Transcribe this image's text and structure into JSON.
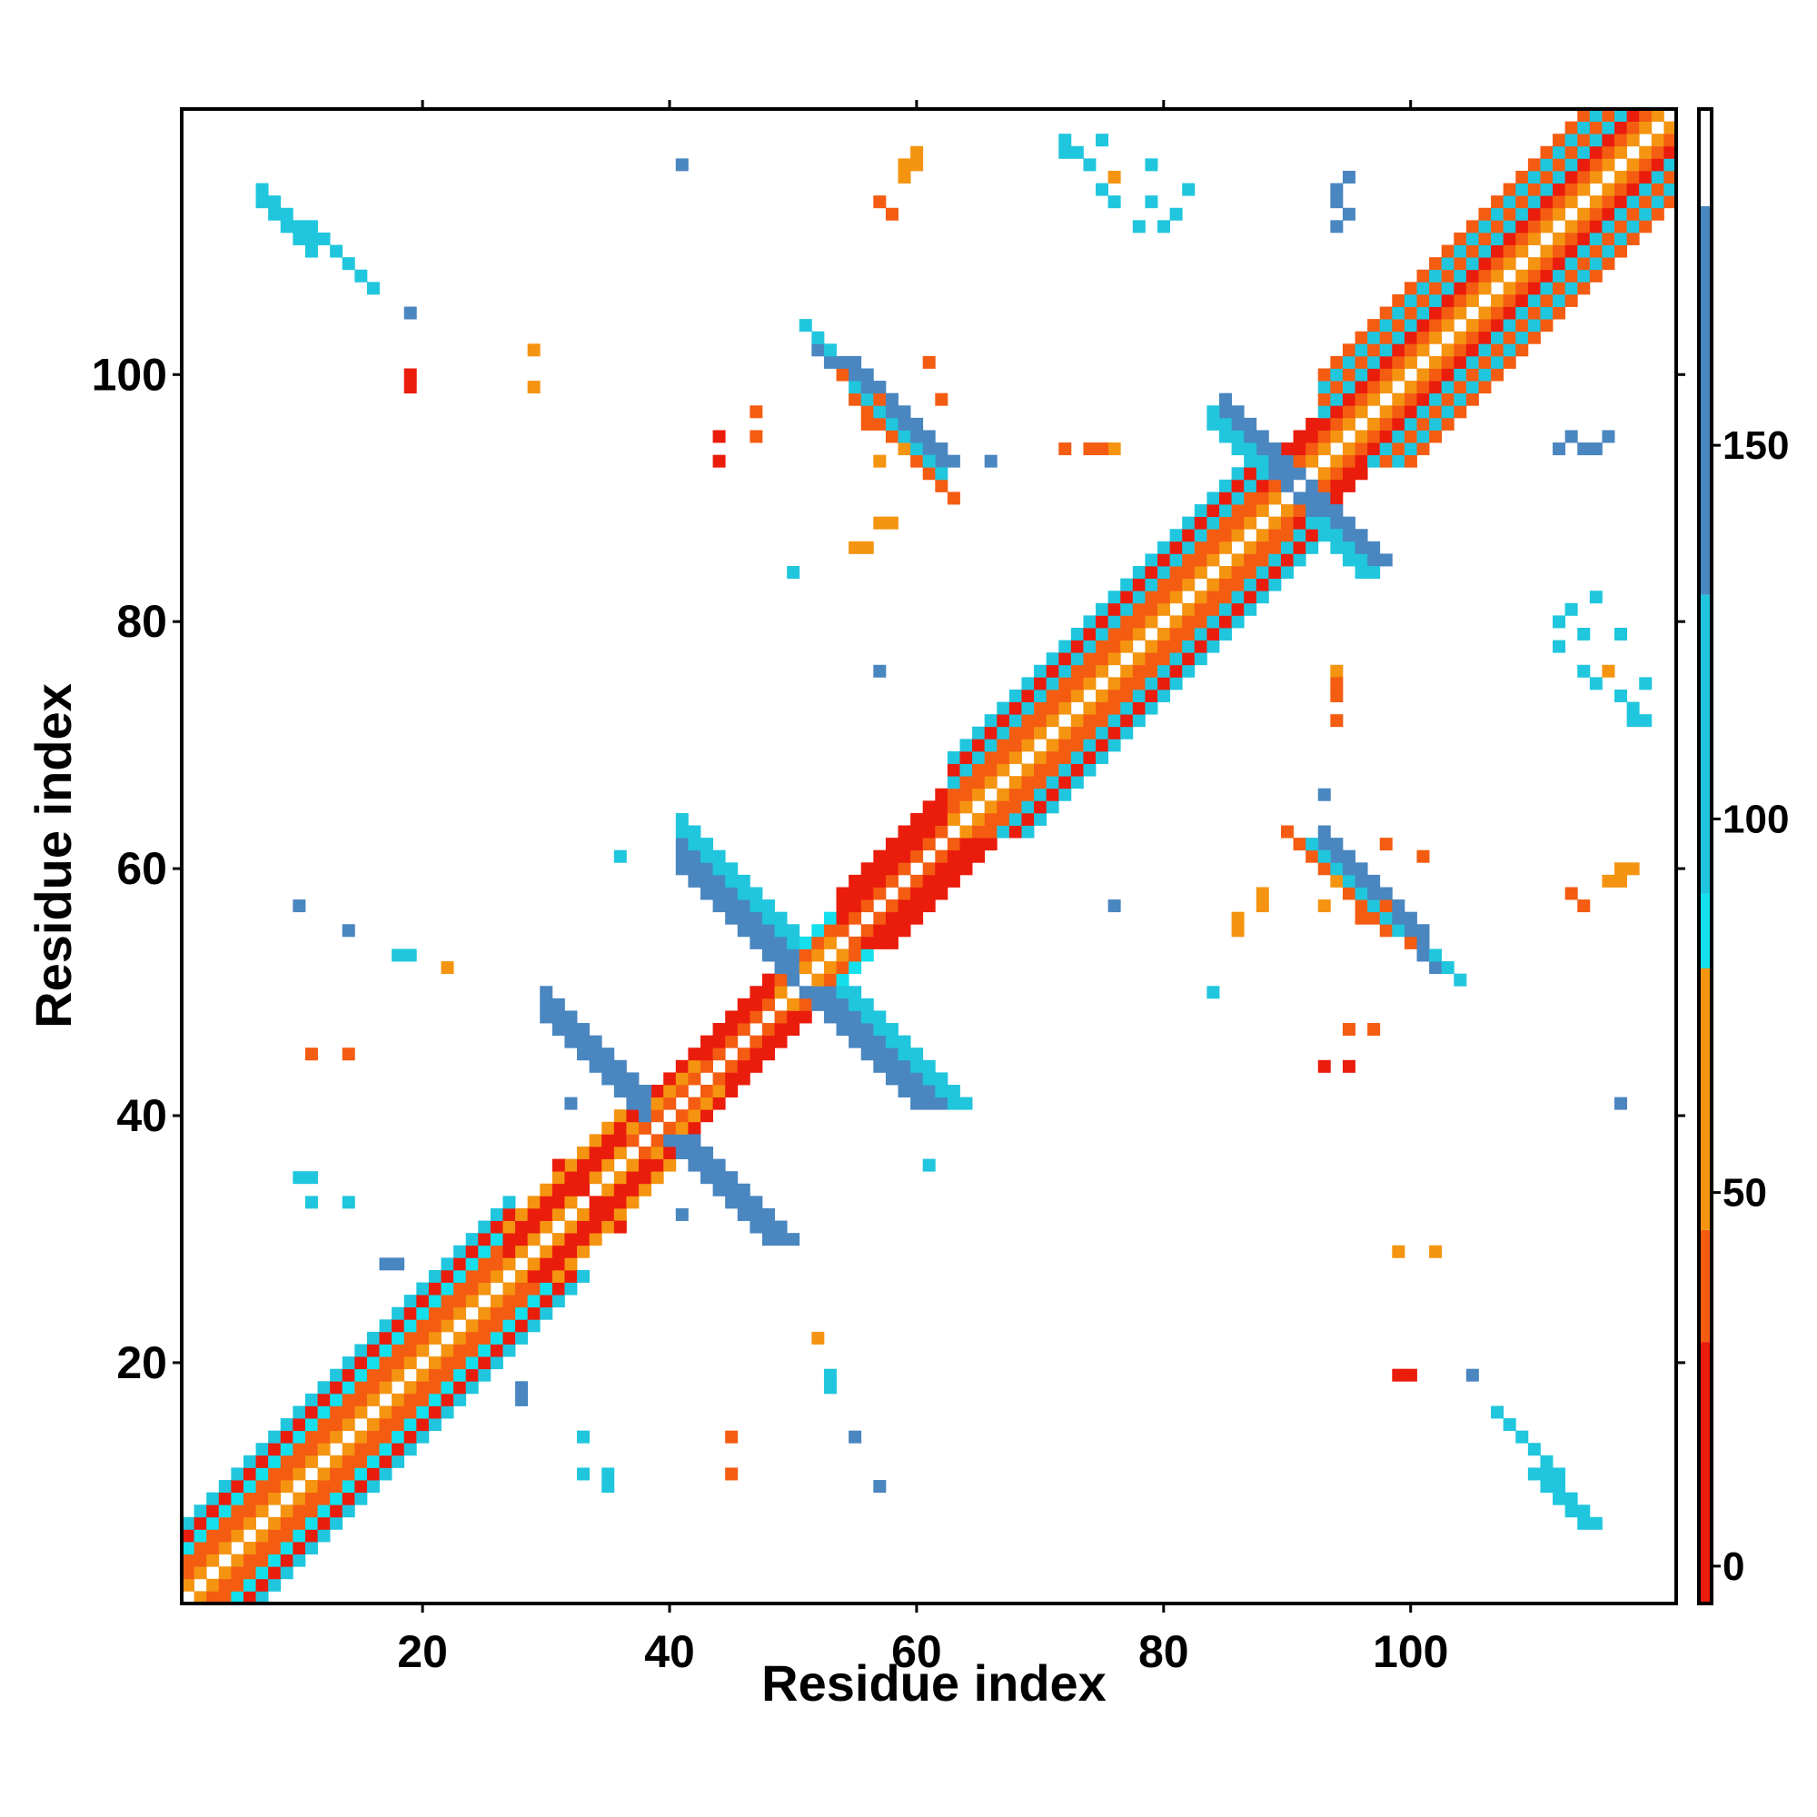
{
  "chart_data": {
    "type": "heatmap",
    "title": "",
    "xlabel": "Residue index",
    "ylabel": "Residue index",
    "xlim": [
      0.5,
      121.5
    ],
    "ylim": [
      0.5,
      121.5
    ],
    "x_ticks": [
      20,
      40,
      60,
      80,
      100
    ],
    "y_ticks": [
      20,
      40,
      60,
      80,
      100
    ],
    "grid": false,
    "legend": "none",
    "colorbar": {
      "placement": "right",
      "range": [
        -5,
        195
      ],
      "ticks": [
        0,
        50,
        100,
        150
      ],
      "segments": [
        {
          "from": -5,
          "to": 30,
          "color": "#ea1c0c"
        },
        {
          "from": 30,
          "to": 45,
          "color": "#f45c12"
        },
        {
          "from": 45,
          "to": 80,
          "color": "#f59410"
        },
        {
          "from": 80,
          "to": 90,
          "color": "#13e0ec"
        },
        {
          "from": 90,
          "to": 130,
          "color": "#20c6dd"
        },
        {
          "from": 130,
          "to": 182,
          "color": "#4a86c0"
        },
        {
          "from": 182,
          "to": 195,
          "color": "#ffffff"
        }
      ]
    },
    "diagonal_bands": [
      {
        "i_from": 1,
        "i_to": 27,
        "offsets": [
          [
            1,
            1,
            45
          ],
          [
            2,
            2,
            40
          ],
          [
            3,
            3,
            30
          ],
          [
            4,
            4,
            85
          ],
          [
            5,
            5,
            20
          ],
          [
            6,
            6,
            100
          ]
        ]
      },
      {
        "i_from": 27,
        "i_to": 37,
        "offsets": [
          [
            1,
            1,
            45
          ],
          [
            2,
            2,
            25
          ],
          [
            3,
            3,
            10
          ],
          [
            4,
            4,
            60
          ]
        ]
      },
      {
        "i_from": 37,
        "i_to": 43,
        "offsets": [
          [
            1,
            1,
            40
          ],
          [
            2,
            2,
            55
          ],
          [
            3,
            3,
            25
          ]
        ]
      },
      {
        "i_from": 43,
        "i_to": 49,
        "offsets": [
          [
            1,
            1,
            40
          ],
          [
            2,
            2,
            25
          ],
          [
            3,
            3,
            10
          ]
        ]
      },
      {
        "i_from": 49,
        "i_to": 54,
        "offsets": [
          [
            1,
            1,
            70
          ],
          [
            2,
            2,
            40
          ],
          [
            3,
            3,
            85
          ]
        ]
      },
      {
        "i_from": 54,
        "i_to": 63,
        "offsets": [
          [
            1,
            1,
            40
          ],
          [
            2,
            2,
            25
          ],
          [
            3,
            3,
            10
          ],
          [
            4,
            4,
            25
          ]
        ]
      },
      {
        "i_from": 63,
        "i_to": 88,
        "offsets": [
          [
            1,
            1,
            45
          ],
          [
            2,
            2,
            40
          ],
          [
            3,
            3,
            30
          ],
          [
            4,
            4,
            90
          ],
          [
            5,
            5,
            20
          ],
          [
            6,
            6,
            100
          ]
        ]
      },
      {
        "i_from": 88,
        "i_to": 93,
        "offsets": [
          [
            1,
            1,
            60
          ],
          [
            2,
            2,
            40
          ],
          [
            3,
            3,
            15
          ],
          [
            4,
            4,
            25
          ]
        ]
      },
      {
        "i_from": 93,
        "i_to": 121,
        "offsets": [
          [
            1,
            1,
            45
          ],
          [
            2,
            2,
            40
          ],
          [
            3,
            3,
            25
          ],
          [
            4,
            4,
            90
          ],
          [
            5,
            5,
            30
          ],
          [
            6,
            6,
            100
          ],
          [
            7,
            7,
            40
          ]
        ]
      }
    ],
    "cross_bands": [
      {
        "i_from": 30,
        "i_to": 38,
        "pair_sum": 78,
        "width": 3,
        "value": 150
      },
      {
        "i_from": 41,
        "i_to": 50,
        "pair_sum": 101,
        "width": 3,
        "value": 150
      },
      {
        "i_from": 41,
        "i_to": 50,
        "pair_sum": 104,
        "width": 2,
        "value": 95
      },
      {
        "i_from": 85,
        "i_to": 91,
        "pair_sum": 181,
        "width": 3,
        "value": 150
      },
      {
        "i_from": 84,
        "i_to": 88,
        "pair_sum": 180,
        "width": 2,
        "value": 95
      },
      {
        "i_from": 55,
        "i_to": 63,
        "pair_sum": 153,
        "width": 1,
        "value": 40
      },
      {
        "i_from": 31,
        "i_to": 36,
        "pair_sum": 67,
        "width": 1,
        "value": 25
      },
      {
        "i_from": 52,
        "i_to": 60,
        "pair_sum": 154,
        "width": 2,
        "value": 150
      },
      {
        "i_from": 51,
        "i_to": 59,
        "pair_sum": 155,
        "width": 1,
        "value": 95
      },
      {
        "i_from": 93,
        "i_to": 101,
        "pair_sum": 155,
        "width": 2,
        "value": 150
      },
      {
        "i_from": 92,
        "i_to": 100,
        "pair_sum": 154,
        "width": 1,
        "value": 95
      },
      {
        "i_from": 7,
        "i_to": 11,
        "pair_sum": 121,
        "width": 2,
        "value": 95
      },
      {
        "i_from": 11,
        "i_to": 16,
        "pair_sum": 123,
        "width": 1,
        "value": 95
      }
    ],
    "spots": [
      [
        61,
        101,
        40
      ],
      [
        62,
        98,
        40
      ],
      [
        57,
        93,
        45
      ],
      [
        59,
        94,
        45
      ],
      [
        44,
        95,
        25
      ],
      [
        47,
        97,
        40
      ],
      [
        57,
        88,
        60
      ],
      [
        56,
        86,
        60
      ],
      [
        96,
        56,
        40
      ],
      [
        98,
        57,
        40
      ],
      [
        93,
        44,
        25
      ],
      [
        95,
        47,
        40
      ],
      [
        100,
        54,
        40
      ],
      [
        86,
        55,
        60
      ],
      [
        88,
        58,
        60
      ],
      [
        74,
        94,
        40
      ],
      [
        76,
        94,
        55
      ],
      [
        66,
        93,
        150
      ],
      [
        94,
        75,
        40
      ],
      [
        94,
        72,
        40
      ],
      [
        19,
        100,
        10
      ],
      [
        99,
        19,
        10
      ],
      [
        11,
        45,
        40
      ],
      [
        14,
        45,
        40
      ],
      [
        45,
        11,
        40
      ],
      [
        45,
        14,
        40
      ],
      [
        41,
        117,
        150
      ],
      [
        117,
        41,
        150
      ],
      [
        10,
        57,
        150
      ],
      [
        14,
        55,
        150
      ],
      [
        57,
        10,
        150
      ],
      [
        55,
        14,
        150
      ],
      [
        59,
        117,
        60
      ],
      [
        116,
        59,
        60
      ],
      [
        57,
        76,
        150
      ],
      [
        72,
        119,
        100
      ],
      [
        72,
        118,
        100
      ],
      [
        75,
        119,
        95
      ],
      [
        76,
        114,
        95
      ],
      [
        79,
        114,
        95
      ],
      [
        80,
        112,
        95
      ],
      [
        94,
        115,
        150
      ],
      [
        94,
        112,
        150
      ],
      [
        114,
        94,
        150
      ],
      [
        117,
        79,
        95
      ],
      [
        112,
        78,
        100
      ],
      [
        115,
        75,
        100
      ],
      [
        117,
        74,
        100
      ],
      [
        113,
        95,
        150
      ],
      [
        116,
        95,
        150
      ],
      [
        115,
        82,
        95
      ],
      [
        113,
        81,
        95
      ],
      [
        116,
        76,
        60
      ],
      [
        118,
        73,
        95
      ],
      [
        114,
        57,
        40
      ],
      [
        113,
        58,
        40
      ],
      [
        117,
        60,
        60
      ],
      [
        118,
        60,
        60
      ],
      [
        10,
        35,
        95
      ],
      [
        11,
        35,
        95
      ],
      [
        11,
        33,
        95
      ],
      [
        14,
        33,
        95
      ],
      [
        35,
        10,
        95
      ],
      [
        33,
        11,
        95
      ],
      [
        33,
        14,
        95
      ],
      [
        18,
        53,
        95
      ],
      [
        22,
        52,
        55
      ],
      [
        53,
        18,
        95
      ],
      [
        52,
        22,
        55
      ],
      [
        52,
        22,
        60
      ],
      [
        22,
        52,
        60
      ],
      [
        53,
        19,
        95
      ],
      [
        19,
        105,
        150
      ],
      [
        105,
        19,
        150
      ],
      [
        28,
        17,
        150
      ],
      [
        28,
        18,
        150
      ],
      [
        17,
        28,
        150
      ],
      [
        18,
        28,
        150
      ],
      [
        41,
        32,
        150
      ],
      [
        32,
        41,
        150
      ],
      [
        36,
        61,
        95
      ],
      [
        61,
        36,
        95
      ],
      [
        29,
        102,
        55
      ],
      [
        99,
        29,
        55
      ],
      [
        50,
        84,
        95
      ],
      [
        84,
        50,
        95
      ]
    ]
  }
}
